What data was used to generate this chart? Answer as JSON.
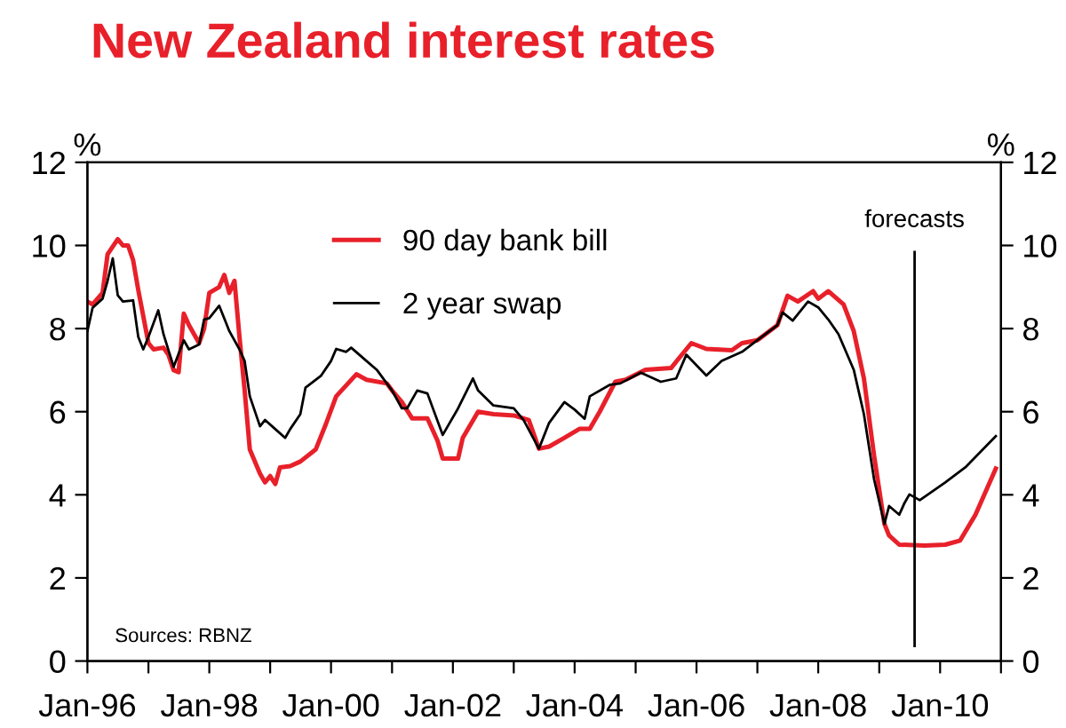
{
  "chart_data": {
    "type": "line",
    "title": "New Zealand interest rates",
    "xlim": [
      "1996-01",
      "2011-01"
    ],
    "xticks": [
      {
        "value": "1996-01",
        "label": "Jan-96"
      },
      {
        "value": "1997-01",
        "label": null
      },
      {
        "value": "1998-01",
        "label": "Jan-98"
      },
      {
        "value": "1999-01",
        "label": null
      },
      {
        "value": "2000-01",
        "label": "Jan-00"
      },
      {
        "value": "2001-01",
        "label": null
      },
      {
        "value": "2002-01",
        "label": "Jan-02"
      },
      {
        "value": "2003-01",
        "label": null
      },
      {
        "value": "2004-01",
        "label": "Jan-04"
      },
      {
        "value": "2005-01",
        "label": null
      },
      {
        "value": "2006-01",
        "label": "Jan-06"
      },
      {
        "value": "2007-01",
        "label": null
      },
      {
        "value": "2008-01",
        "label": "Jan-08"
      },
      {
        "value": "2009-01",
        "label": null
      },
      {
        "value": "2010-01",
        "label": "Jan-10"
      },
      {
        "value": "2011-01",
        "label": null
      }
    ],
    "ylim": [
      0,
      12
    ],
    "yticks": [
      0,
      2,
      4,
      6,
      8,
      10,
      12
    ],
    "y2lim": [
      0,
      12
    ],
    "y2ticks": [
      0,
      2,
      4,
      6,
      8,
      10,
      12
    ],
    "ylabel": "%",
    "y2label": "%",
    "grid": false,
    "legend": "top",
    "line_style": "solid",
    "marker": "none",
    "ref_lines": [
      {
        "axis": "x",
        "value": "2009-08",
        "label": "forecasts",
        "color": "#000000"
      }
    ],
    "annotations": [
      "Sources: RBNZ"
    ],
    "series": [
      {
        "name": "90 day bank bill",
        "color": "#e8202a",
        "x": [
          "1996-01",
          "1996-02",
          "1996-04",
          "1996-05",
          "1996-07",
          "1996-08",
          "1996-09",
          "1996-10",
          "1996-11",
          "1997-01",
          "1997-02",
          "1997-04",
          "1997-05",
          "1997-06",
          "1997-07",
          "1997-08",
          "1997-09",
          "1997-11",
          "1997-12",
          "1998-01",
          "1998-03",
          "1998-04",
          "1998-05",
          "1998-06",
          "1998-07",
          "1998-08",
          "1998-09",
          "1998-11",
          "1998-12",
          "1999-01",
          "1999-02",
          "1999-03",
          "1999-05",
          "1999-07",
          "1999-10",
          "1999-12",
          "2000-02",
          "2000-06",
          "2000-08",
          "2000-12",
          "2001-01",
          "2001-03",
          "2001-05",
          "2001-08",
          "2001-10",
          "2001-11",
          "2002-02",
          "2002-03",
          "2002-06",
          "2002-09",
          "2003-01",
          "2003-04",
          "2003-06",
          "2003-08",
          "2003-11",
          "2004-02",
          "2004-04",
          "2004-06",
          "2004-09",
          "2004-11",
          "2005-03",
          "2005-08",
          "2005-12",
          "2006-03",
          "2006-08",
          "2006-10",
          "2007-01",
          "2007-05",
          "2007-07",
          "2007-09",
          "2007-12",
          "2008-01",
          "2008-03",
          "2008-06",
          "2008-08",
          "2008-10",
          "2008-12",
          "2009-02",
          "2009-03",
          "2009-05",
          "2009-10",
          "2010-02",
          "2010-05",
          "2010-08",
          "2010-12"
        ],
        "values": [
          8.65,
          8.58,
          8.86,
          9.79,
          10.15,
          10.0,
          10.0,
          9.65,
          8.93,
          7.65,
          7.5,
          7.54,
          7.37,
          7.0,
          6.95,
          8.36,
          8.08,
          7.65,
          8.0,
          8.86,
          9.0,
          9.29,
          8.86,
          9.15,
          7.8,
          6.51,
          5.09,
          4.51,
          4.3,
          4.45,
          4.26,
          4.66,
          4.69,
          4.8,
          5.09,
          5.7,
          6.37,
          6.9,
          6.77,
          6.68,
          6.51,
          6.23,
          5.84,
          5.84,
          5.3,
          4.87,
          4.87,
          5.37,
          6.0,
          5.94,
          5.91,
          5.8,
          5.11,
          5.16,
          5.37,
          5.59,
          5.59,
          6.01,
          6.72,
          6.77,
          7.01,
          7.05,
          7.65,
          7.51,
          7.48,
          7.65,
          7.72,
          8.08,
          8.79,
          8.65,
          8.9,
          8.72,
          8.9,
          8.58,
          7.94,
          6.8,
          4.94,
          3.3,
          3.02,
          2.8,
          2.78,
          2.8,
          2.9,
          3.52,
          4.63
        ]
      },
      {
        "name": "2 year swap",
        "color": "#000000",
        "x": [
          "1996-01",
          "1996-02",
          "1996-04",
          "1996-05",
          "1996-06",
          "1996-07",
          "1996-08",
          "1996-10",
          "1996-11",
          "1996-12",
          "1997-01",
          "1997-03",
          "1997-04",
          "1997-06",
          "1997-08",
          "1997-09",
          "1997-11",
          "1997-12",
          "1998-01",
          "1998-03",
          "1998-05",
          "1998-07",
          "1998-08",
          "1998-09",
          "1998-11",
          "1998-12",
          "1999-02",
          "1999-04",
          "1999-05",
          "1999-07",
          "1999-08",
          "1999-11",
          "2000-01",
          "2000-02",
          "2000-04",
          "2000-05",
          "2000-08",
          "2000-10",
          "2001-01",
          "2001-03",
          "2001-04",
          "2001-06",
          "2001-08",
          "2001-11",
          "2002-02",
          "2002-05",
          "2002-06",
          "2002-09",
          "2003-01",
          "2003-03",
          "2003-06",
          "2003-08",
          "2003-11",
          "2004-01",
          "2004-03",
          "2004-04",
          "2004-08",
          "2004-10",
          "2005-02",
          "2005-06",
          "2005-09",
          "2005-11",
          "2006-03",
          "2006-06",
          "2006-10",
          "2007-01",
          "2007-05",
          "2007-06",
          "2007-08",
          "2007-11",
          "2008-01",
          "2008-03",
          "2008-05",
          "2008-08",
          "2008-10",
          "2008-12",
          "2009-02",
          "2009-03",
          "2009-05",
          "2009-06",
          "2009-07",
          "2009-09",
          "2010-02",
          "2010-06",
          "2010-12"
        ],
        "values": [
          7.94,
          8.5,
          8.72,
          9.15,
          9.69,
          8.8,
          8.65,
          8.68,
          7.8,
          7.5,
          7.8,
          8.44,
          7.87,
          7.08,
          7.72,
          7.5,
          7.62,
          8.22,
          8.25,
          8.55,
          7.94,
          7.5,
          7.22,
          6.37,
          5.65,
          5.8,
          5.58,
          5.37,
          5.58,
          5.94,
          6.58,
          6.86,
          7.22,
          7.51,
          7.44,
          7.54,
          7.22,
          7.01,
          6.51,
          6.08,
          6.08,
          6.51,
          6.44,
          5.44,
          6.08,
          6.8,
          6.51,
          6.15,
          6.08,
          5.8,
          5.11,
          5.73,
          6.23,
          6.05,
          5.83,
          6.37,
          6.65,
          6.68,
          6.94,
          6.72,
          6.8,
          7.37,
          6.87,
          7.22,
          7.44,
          7.72,
          8.08,
          8.39,
          8.19,
          8.65,
          8.51,
          8.22,
          7.87,
          7.01,
          5.94,
          4.37,
          3.3,
          3.73,
          3.52,
          3.8,
          4.01,
          3.87,
          4.3,
          4.66,
          5.41
        ]
      }
    ]
  }
}
